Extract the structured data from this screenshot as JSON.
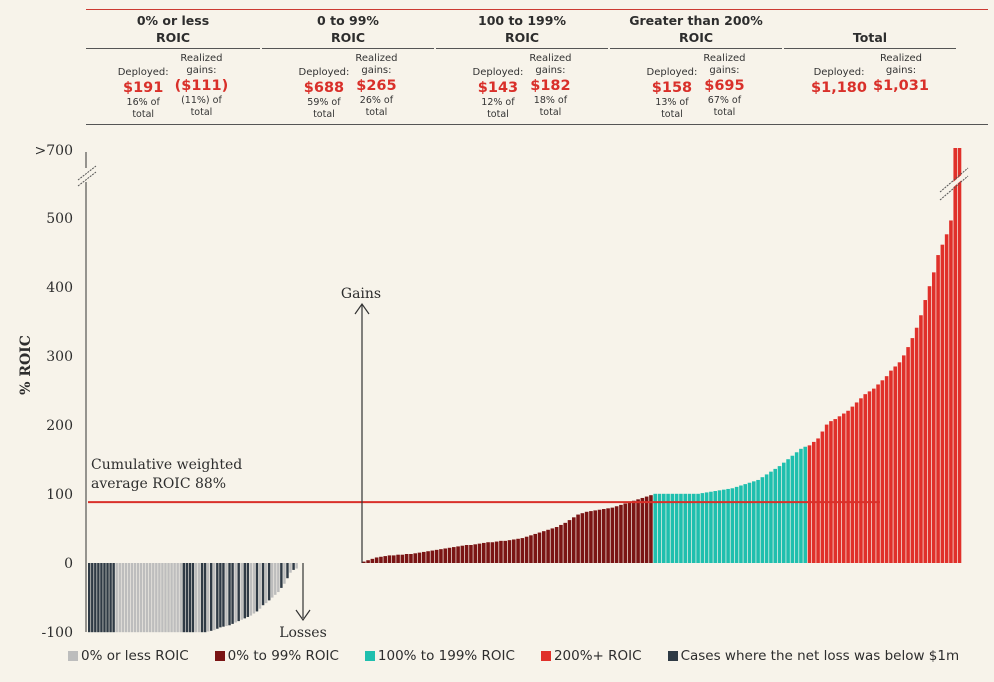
{
  "header": {
    "groups": [
      {
        "title_line1": "0% or less",
        "title_line2": "ROIC",
        "deployed_label": "Deployed:",
        "deployed_value": "$191",
        "deployed_pct_line1": "16% of",
        "deployed_pct_line2": "total",
        "realized_label_line1": "Realized",
        "realized_label_line2": "gains:",
        "realized_value": "($111)",
        "realized_pct_line1": "(11%) of",
        "realized_pct_line2": "total"
      },
      {
        "title_line1": "0 to 99%",
        "title_line2": "ROIC",
        "deployed_label": "Deployed:",
        "deployed_value": "$688",
        "deployed_pct_line1": "59% of",
        "deployed_pct_line2": "total",
        "realized_label_line1": "Realized",
        "realized_label_line2": "gains:",
        "realized_value": "$265",
        "realized_pct_line1": "26% of",
        "realized_pct_line2": "total"
      },
      {
        "title_line1": "100 to 199%",
        "title_line2": "ROIC",
        "deployed_label": "Deployed:",
        "deployed_value": "$143",
        "deployed_pct_line1": "12% of",
        "deployed_pct_line2": "total",
        "realized_label_line1": "Realized",
        "realized_label_line2": "gains:",
        "realized_value": "$182",
        "realized_pct_line1": "18% of",
        "realized_pct_line2": "total"
      },
      {
        "title_line1": "Greater than 200%",
        "title_line2": "ROIC",
        "deployed_label": "Deployed:",
        "deployed_value": "$158",
        "deployed_pct_line1": "13% of",
        "deployed_pct_line2": "total",
        "realized_label_line1": "Realized",
        "realized_label_line2": "gains:",
        "realized_value": "$695",
        "realized_pct_line1": "67% of",
        "realized_pct_line2": "total"
      },
      {
        "title_line1": "",
        "title_line2": "Total",
        "deployed_label": "Deployed:",
        "deployed_value": "$1,180",
        "deployed_pct_line1": "",
        "deployed_pct_line2": "",
        "realized_label_line1": "Realized",
        "realized_label_line2": "gains:",
        "realized_value": "$1,031",
        "realized_pct_line1": "",
        "realized_pct_line2": ""
      }
    ]
  },
  "chart_data": {
    "type": "bar",
    "ylabel": "% ROIC",
    "yticks": [
      ">700",
      "500",
      "400",
      "300",
      "200",
      "100",
      "0",
      "-100"
    ],
    "ylim": [
      -100,
      600
    ],
    "reference_line": {
      "value": 88,
      "label_line1": "Cumulative weighted",
      "label_line2": "average ROIC 88%",
      "color": "#d9302a"
    },
    "annotations": {
      "gains": "Gains",
      "losses": "Losses"
    },
    "loss_values": [
      -100,
      -100,
      -100,
      -100,
      -100,
      -100,
      -100,
      -100,
      -100,
      -100,
      -100,
      -100,
      -100,
      -100,
      -100,
      -100,
      -100,
      -100,
      -100,
      -100,
      -100,
      -100,
      -100,
      -100,
      -100,
      -100,
      -100,
      -100,
      -100,
      -100,
      -100,
      -100,
      -100,
      -100,
      -100,
      -100,
      -100,
      -100,
      -100,
      -99,
      -98,
      -97,
      -95,
      -93,
      -92,
      -91,
      -90,
      -88,
      -86,
      -84,
      -82,
      -80,
      -78,
      -76,
      -73,
      -70,
      -66,
      -61,
      -58,
      -54,
      -50,
      -46,
      -42,
      -36,
      -30,
      -22,
      -14,
      -10,
      -8
    ],
    "loss_kinds": [
      "dark",
      "dark",
      "dark",
      "dark",
      "dark",
      "dark",
      "dark",
      "dark",
      "dark",
      "gray",
      "gray",
      "gray",
      "gray",
      "gray",
      "gray",
      "gray",
      "gray",
      "gray",
      "gray",
      "gray",
      "gray",
      "gray",
      "gray",
      "gray",
      "gray",
      "gray",
      "gray",
      "gray",
      "gray",
      "gray",
      "gray",
      "dark",
      "dark",
      "dark",
      "dark",
      "gray",
      "gray",
      "dark",
      "dark",
      "gray",
      "dark",
      "gray",
      "dark",
      "dark",
      "dark",
      "gray",
      "dark",
      "dark",
      "gray",
      "dark",
      "gray",
      "dark",
      "dark",
      "gray",
      "gray",
      "dark",
      "gray",
      "dark",
      "gray",
      "dark",
      "gray",
      "gray",
      "gray",
      "dark",
      "gray",
      "dark",
      "gray",
      "dark",
      "gray"
    ],
    "gain_values": [
      2,
      4,
      6,
      8,
      9,
      10,
      11,
      11,
      12,
      12,
      13,
      13,
      14,
      15,
      16,
      17,
      18,
      19,
      20,
      21,
      22,
      23,
      24,
      25,
      26,
      26,
      27,
      28,
      29,
      30,
      30,
      31,
      32,
      32,
      33,
      34,
      35,
      36,
      38,
      40,
      42,
      44,
      46,
      48,
      50,
      52,
      55,
      58,
      62,
      66,
      70,
      72,
      74,
      75,
      76,
      77,
      78,
      79,
      80,
      82,
      84,
      86,
      88,
      90,
      92,
      94,
      96,
      98,
      100,
      100,
      100,
      100,
      100,
      100,
      100,
      100,
      100,
      100,
      100,
      101,
      102,
      103,
      104,
      105,
      106,
      107,
      108,
      110,
      112,
      114,
      116,
      118,
      120,
      124,
      128,
      132,
      136,
      140,
      145,
      150,
      155,
      160,
      165,
      168,
      170,
      175,
      180,
      190,
      200,
      205,
      208,
      212,
      216,
      220,
      226,
      232,
      238,
      244,
      248,
      252,
      258,
      264,
      270,
      278,
      284,
      290,
      300,
      312,
      325,
      340,
      358,
      380,
      400,
      420,
      445,
      460,
      475,
      495,
      700,
      700
    ],
    "gain_split_index": 68,
    "band2_start": 68,
    "band3_start": 104,
    "series": [
      {
        "name": "0% or less ROIC",
        "color": "#bdbdbd"
      },
      {
        "name": "0% to 99% ROIC",
        "color": "#7a1414"
      },
      {
        "name": "100% to 199% ROIC",
        "color": "#1fbfae"
      },
      {
        "name": "200%+ ROIC",
        "color": "#e0302a"
      },
      {
        "name": "Cases where the net loss was below $1m",
        "color": "#2f3a45"
      }
    ]
  }
}
